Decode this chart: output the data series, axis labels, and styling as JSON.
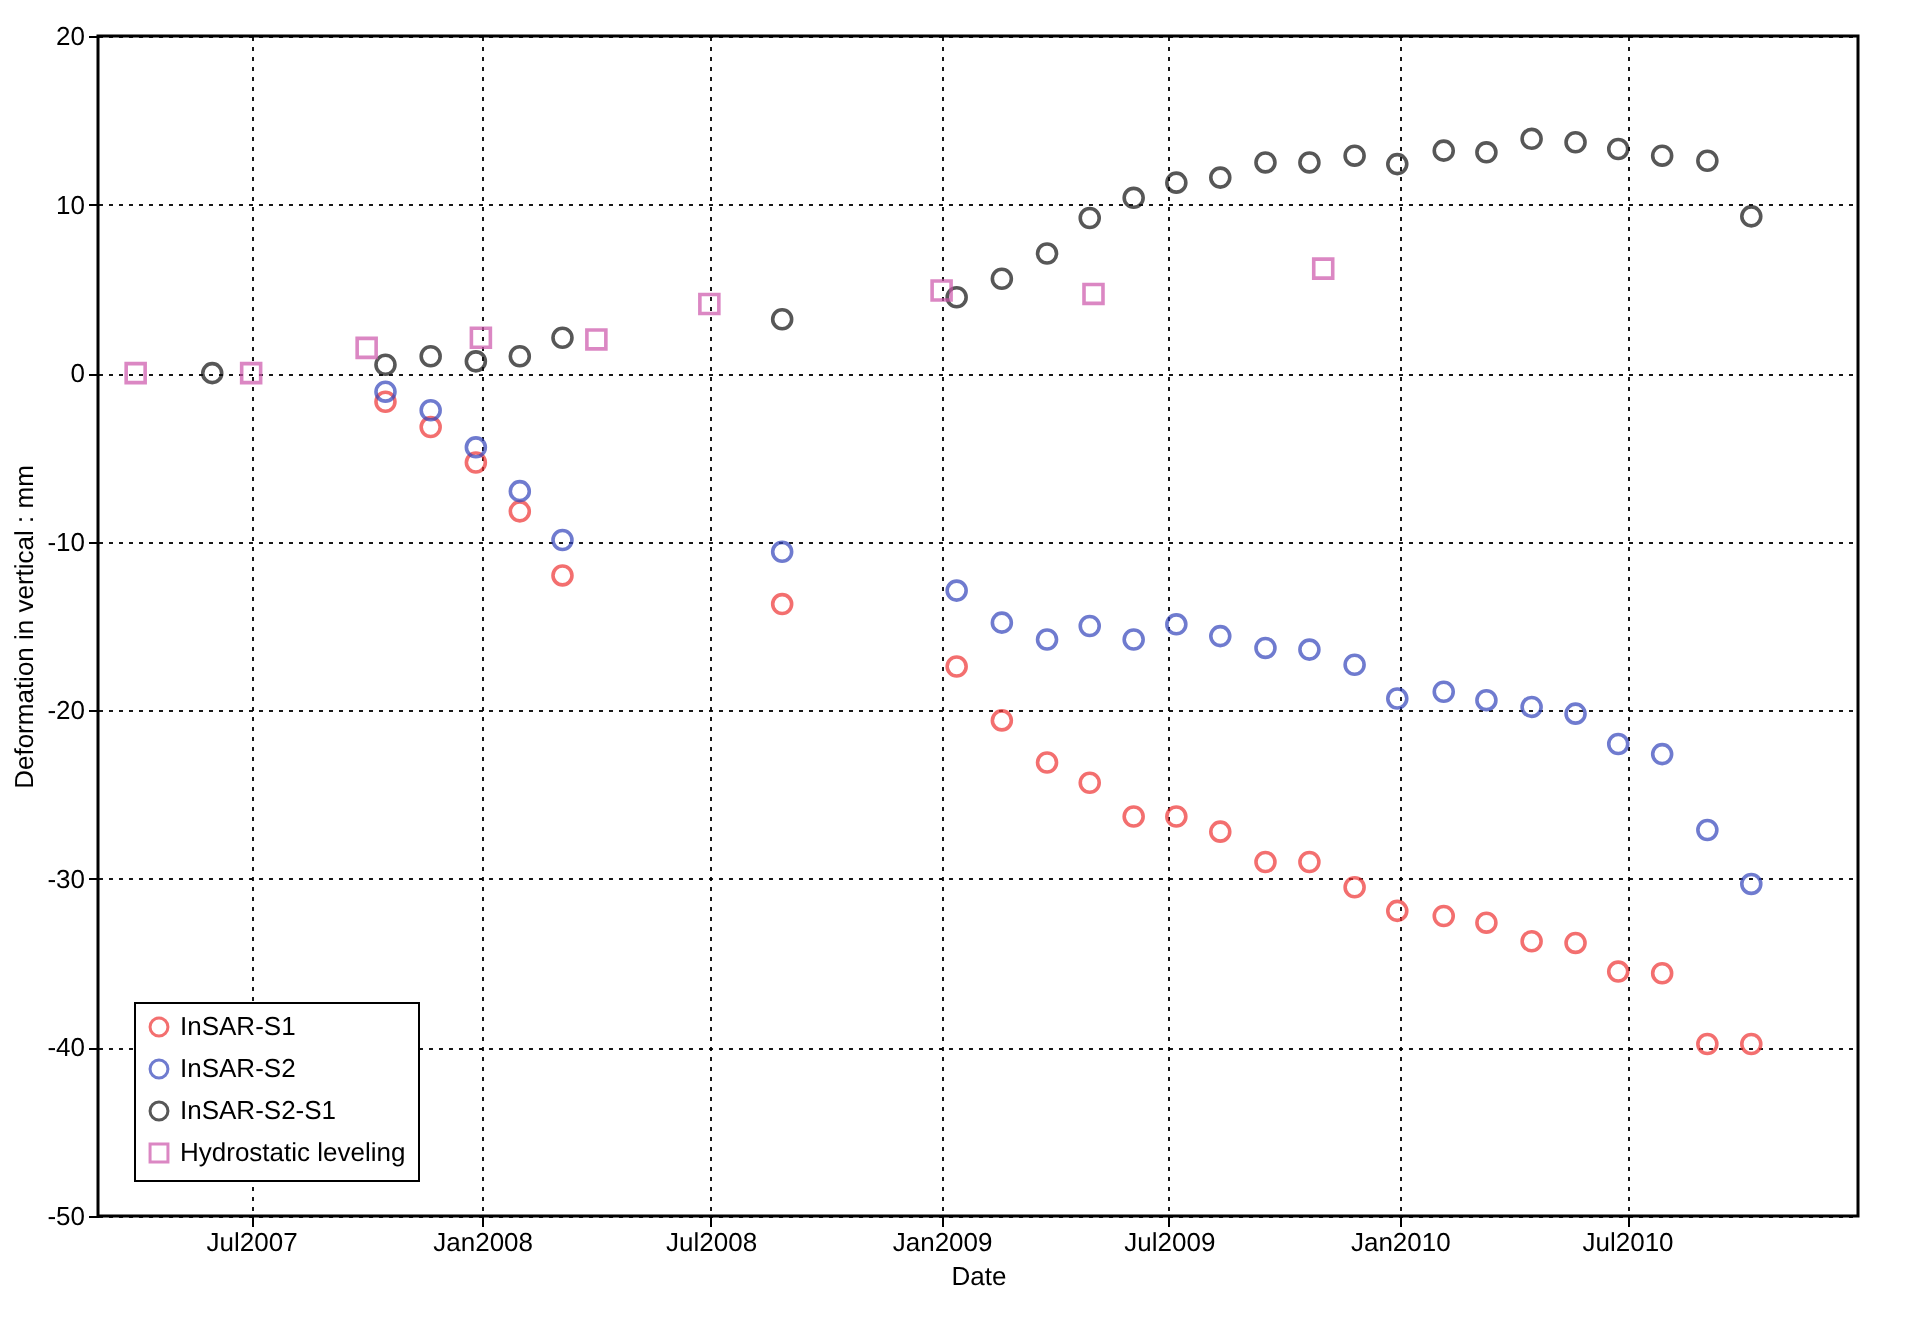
{
  "chart_data": {
    "type": "scatter",
    "xlabel": "Date",
    "ylabel": "Deformation in vertical : mm",
    "xlim": [
      "2007-03-01",
      "2011-01-01"
    ],
    "xticks": [
      {
        "value": "2007-07-01",
        "label": "Jul2007"
      },
      {
        "value": "2008-01-01",
        "label": "Jan2008"
      },
      {
        "value": "2008-07-01",
        "label": "Jul2008"
      },
      {
        "value": "2009-01-01",
        "label": "Jan2009"
      },
      {
        "value": "2009-07-01",
        "label": "Jul2009"
      },
      {
        "value": "2010-01-01",
        "label": "Jan2010"
      },
      {
        "value": "2010-07-01",
        "label": "Jul2010"
      }
    ],
    "ylim": [
      -50,
      20
    ],
    "yticks": [
      -50,
      -40,
      -30,
      -20,
      -10,
      0,
      10,
      20
    ],
    "grid": true,
    "legend": "bottom left",
    "series": [
      {
        "name": "InSAR-S1",
        "color": "#ee3333",
        "marker": "circle",
        "x": [
          "2007-10-16",
          "2007-11-21",
          "2007-12-27",
          "2008-01-31",
          "2008-03-05",
          "2008-08-27",
          "2009-01-13",
          "2009-02-18",
          "2009-03-26",
          "2009-04-29",
          "2009-06-03",
          "2009-07-07",
          "2009-08-11",
          "2009-09-16",
          "2009-10-21",
          "2009-11-26",
          "2009-12-30",
          "2010-02-05",
          "2010-03-11",
          "2010-04-16",
          "2010-05-21",
          "2010-06-24",
          "2010-07-29",
          "2010-09-03",
          "2010-10-08"
        ],
        "values": [
          -1.7,
          -3.2,
          -5.3,
          -8.2,
          -12.0,
          -13.7,
          -17.4,
          -20.6,
          -23.1,
          -24.3,
          -26.3,
          -26.3,
          -27.2,
          -29.0,
          -29.0,
          -30.5,
          -31.9,
          -32.2,
          -32.6,
          -33.7,
          -33.8,
          -35.5,
          -35.6,
          -39.8,
          -39.8
        ]
      },
      {
        "name": "InSAR-S2",
        "color": "#3344bb",
        "marker": "circle",
        "x": [
          "2007-10-16",
          "2007-11-21",
          "2007-12-27",
          "2008-01-31",
          "2008-03-05",
          "2008-08-27",
          "2009-01-13",
          "2009-02-18",
          "2009-03-26",
          "2009-04-29",
          "2009-06-03",
          "2009-07-07",
          "2009-08-11",
          "2009-09-16",
          "2009-10-21",
          "2009-11-26",
          "2009-12-30",
          "2010-02-05",
          "2010-03-11",
          "2010-04-16",
          "2010-05-21",
          "2010-06-24",
          "2010-07-29",
          "2010-09-03",
          "2010-10-08"
        ],
        "values": [
          -1.1,
          -2.2,
          -4.4,
          -7.0,
          -9.9,
          -10.6,
          -12.9,
          -14.8,
          -15.8,
          -15.0,
          -15.8,
          -14.9,
          -15.6,
          -16.3,
          -16.4,
          -17.3,
          -19.3,
          -18.9,
          -19.4,
          -19.8,
          -20.2,
          -22.0,
          -22.6,
          -27.1,
          -30.3
        ]
      },
      {
        "name": "InSAR-S2-S1",
        "color": "#111111",
        "marker": "circle",
        "x": [
          "2007-05-31",
          "2007-10-16",
          "2007-11-21",
          "2007-12-27",
          "2008-01-31",
          "2008-03-05",
          "2008-08-27",
          "2009-01-13",
          "2009-02-18",
          "2009-03-26",
          "2009-04-29",
          "2009-06-03",
          "2009-07-07",
          "2009-08-11",
          "2009-09-16",
          "2009-10-21",
          "2009-11-26",
          "2009-12-30",
          "2010-02-05",
          "2010-03-11",
          "2010-04-16",
          "2010-05-21",
          "2010-06-24",
          "2010-07-29",
          "2010-09-03",
          "2010-10-08"
        ],
        "values": [
          0,
          0.5,
          1.0,
          0.7,
          1.0,
          2.1,
          3.2,
          4.5,
          5.6,
          7.1,
          9.2,
          10.4,
          11.3,
          11.6,
          12.5,
          12.5,
          12.9,
          12.4,
          13.2,
          13.1,
          13.9,
          13.7,
          13.3,
          12.9,
          12.6,
          9.3
        ]
      },
      {
        "name": "Hydrostatic leveling",
        "color": "#cc55aa",
        "marker": "square",
        "x": [
          "2007-03-31",
          "2007-07-01",
          "2007-10-01",
          "2007-12-31",
          "2008-04-01",
          "2008-06-30",
          "2009-01-01",
          "2009-05-02",
          "2009-11-01"
        ],
        "values": [
          0,
          0,
          1.5,
          2.1,
          2.0,
          4.1,
          4.9,
          4.7,
          6.2
        ]
      }
    ]
  }
}
